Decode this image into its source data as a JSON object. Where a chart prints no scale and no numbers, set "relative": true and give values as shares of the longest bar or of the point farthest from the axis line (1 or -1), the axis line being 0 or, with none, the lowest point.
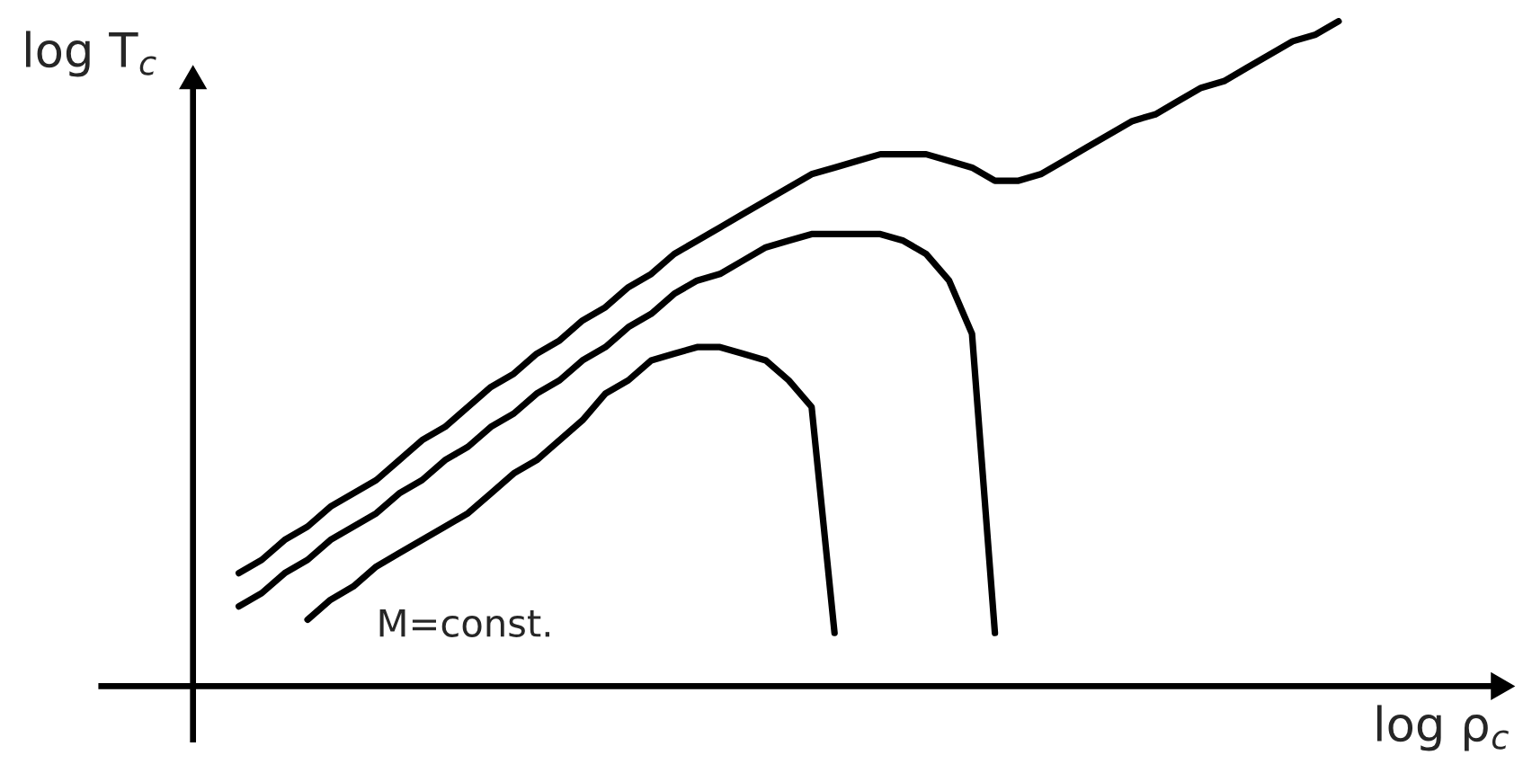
{
  "chart_data": {
    "type": "line",
    "relative": true,
    "xlabel": "log ρ$_{c}$",
    "ylabel": "log T$_{c}$",
    "annotations": [
      "M=const."
    ],
    "categories": [
      null,
      null,
      null,
      null,
      null,
      null,
      null,
      null,
      null,
      null,
      null,
      null,
      null,
      null,
      null,
      null,
      null,
      null,
      null,
      null,
      null,
      null,
      null,
      null,
      null,
      null,
      null,
      null,
      null,
      null,
      null,
      null,
      null,
      null,
      null,
      null,
      null,
      null,
      null,
      null,
      null,
      null,
      null,
      null,
      null,
      null,
      null,
      null,
      null,
      null,
      null
    ],
    "series": [
      {
        "color": "#000000",
        "values": [
          null,
          null,
          0.17,
          0.19,
          0.22,
          0.24,
          0.27,
          0.29,
          0.31,
          0.34,
          0.37,
          0.39,
          0.42,
          0.45,
          0.47,
          0.5,
          0.52,
          0.55,
          0.57,
          0.6,
          0.62,
          0.65,
          0.67,
          0.69,
          0.71,
          0.73,
          0.75,
          0.77,
          0.78,
          0.79,
          0.8,
          0.8,
          0.8,
          0.79,
          0.78,
          0.76,
          0.76,
          0.77,
          0.79,
          0.81,
          0.83,
          0.85,
          0.86,
          0.88,
          0.9,
          0.91,
          0.93,
          0.95,
          0.97,
          0.98,
          1.0
        ]
      },
      {
        "color": "#000000",
        "values": [
          null,
          null,
          0.12,
          0.14,
          0.17,
          0.19,
          0.22,
          0.24,
          0.26,
          0.29,
          0.31,
          0.34,
          0.36,
          0.39,
          0.41,
          0.44,
          0.46,
          0.49,
          0.51,
          0.54,
          0.56,
          0.59,
          0.61,
          0.62,
          0.64,
          0.66,
          0.67,
          0.68,
          0.68,
          0.68,
          0.68,
          0.67,
          0.65,
          0.61,
          0.53,
          0.08,
          null,
          null,
          null,
          null,
          null,
          null,
          null,
          null,
          null,
          null,
          null,
          null,
          null,
          null,
          null
        ]
      },
      {
        "color": "#000000",
        "values": [
          null,
          null,
          null,
          null,
          null,
          0.1,
          0.13,
          0.15,
          0.18,
          0.2,
          0.22,
          0.24,
          0.26,
          0.29,
          0.32,
          0.34,
          0.37,
          0.4,
          0.44,
          0.46,
          0.49,
          0.5,
          0.51,
          0.51,
          0.5,
          0.49,
          0.46,
          0.42,
          0.08,
          null,
          null,
          null,
          null,
          null,
          null,
          null,
          null,
          null,
          null,
          null,
          null,
          null,
          null,
          null,
          null,
          null,
          null,
          null,
          null,
          null,
          null
        ]
      }
    ]
  }
}
